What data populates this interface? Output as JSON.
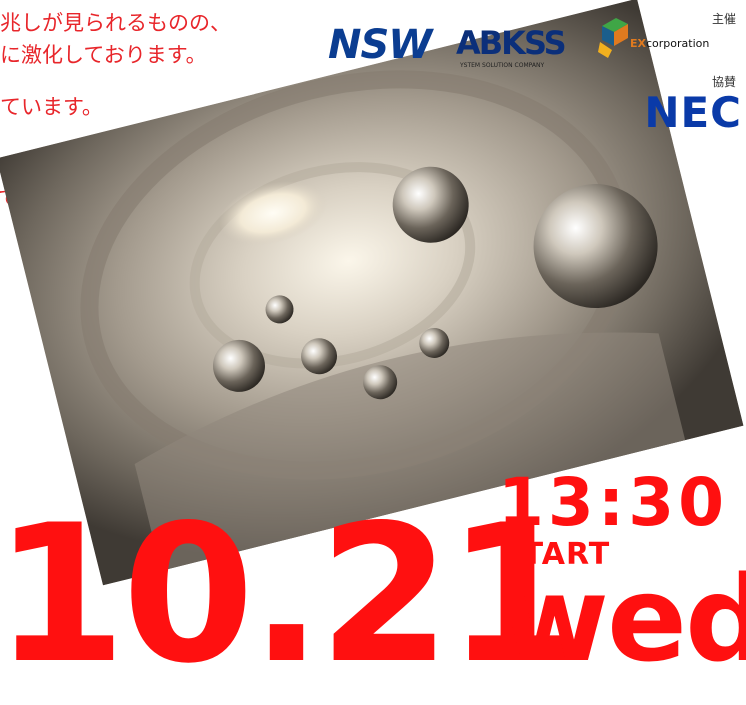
{
  "intro": {
    "line1": "兆しが見られるものの、",
    "line2": "に激化しております。",
    "line3": "ています。",
    "line4": "で"
  },
  "sponsors": {
    "host_label": "主催",
    "cooperation_label": "協賛",
    "logos": {
      "nsw": "NSW",
      "abkss": "ABKSS",
      "abkss_tagline": "YSTEM SOLUTION COMPANY",
      "ex_prefix": "EX",
      "ex_suffix": "corporation",
      "nec": "NEC"
    }
  },
  "event": {
    "time": "13:30",
    "start_label": "START",
    "date": "10.21",
    "weekday": "wed"
  },
  "colors": {
    "accent": "#ff1010",
    "intro_text": "#e8262b",
    "nsw": "#0b3d91",
    "nec": "#0a3aa8"
  }
}
